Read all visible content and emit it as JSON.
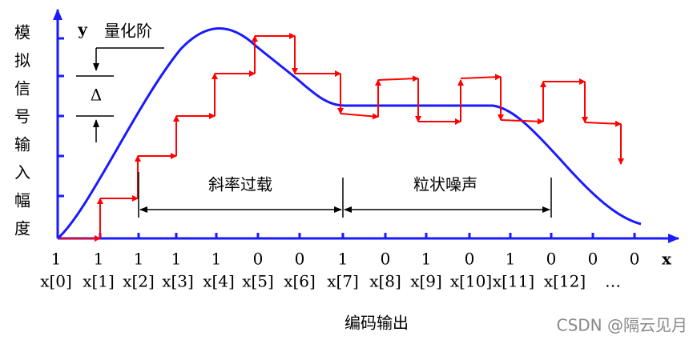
{
  "y_axis_label": [
    "模",
    "拟",
    "信",
    "号",
    "输",
    "入",
    "幅",
    "度"
  ],
  "y_axis_symbol": "y",
  "x_axis_symbol": "x",
  "quantization_label": "量化阶",
  "delta": "Δ",
  "regions": [
    "斜率过载",
    "粒状噪声"
  ],
  "bits": [
    "1",
    "1",
    "1",
    "1",
    "1",
    "0",
    "0",
    "1",
    "0",
    "1",
    "0",
    "1",
    "0",
    "0",
    "0"
  ],
  "samples": [
    "x[0]",
    "x[1]",
    "x[2]",
    "x[3]",
    "x[4]",
    "x[5]",
    "x[6]",
    "x[7]",
    "x[8]",
    "x[9]",
    "x[10]",
    "x[11]",
    "x[12]",
    "…"
  ],
  "x_axis_label": "编码输出",
  "watermark": "CSDN @隔云见月"
}
